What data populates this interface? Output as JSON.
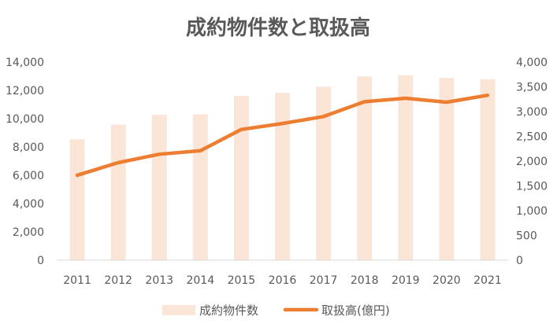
{
  "chart_data": {
    "type": "bar",
    "title": "成約物件数と取扱高",
    "categories": [
      "2011",
      "2012",
      "2013",
      "2014",
      "2015",
      "2016",
      "2017",
      "2018",
      "2019",
      "2020",
      "2021"
    ],
    "series": [
      {
        "name": "成約物件数",
        "type": "bar",
        "axis": "left",
        "color": "#fbe5d6",
        "values": [
          8540,
          9580,
          10270,
          10310,
          11610,
          11830,
          12260,
          12990,
          13070,
          12880,
          12790
        ]
      },
      {
        "name": "取扱高(億円)",
        "type": "line",
        "axis": "right",
        "color": "#ed7d31",
        "values": [
          1715,
          1970,
          2140,
          2210,
          2640,
          2760,
          2900,
          3200,
          3270,
          3190,
          3330
        ]
      }
    ],
    "y_left": {
      "ylim": [
        0,
        14000
      ],
      "ticks": [
        0,
        2000,
        4000,
        6000,
        8000,
        10000,
        12000,
        14000
      ],
      "tick_labels": [
        "0",
        "2,000",
        "4,000",
        "6,000",
        "8,000",
        "10,000",
        "12,000",
        "14,000"
      ]
    },
    "y_right": {
      "ylim": [
        0,
        4000
      ],
      "ticks": [
        0,
        500,
        1000,
        1500,
        2000,
        2500,
        3000,
        3500,
        4000
      ],
      "tick_labels": [
        "0",
        "500",
        "1,000",
        "1,500",
        "2,000",
        "2,500",
        "3,000",
        "3,500",
        "4,000"
      ]
    },
    "grid": false,
    "legend_position": "bottom",
    "axis_line_color": "#d9d9d9",
    "text_color": "#595959"
  }
}
